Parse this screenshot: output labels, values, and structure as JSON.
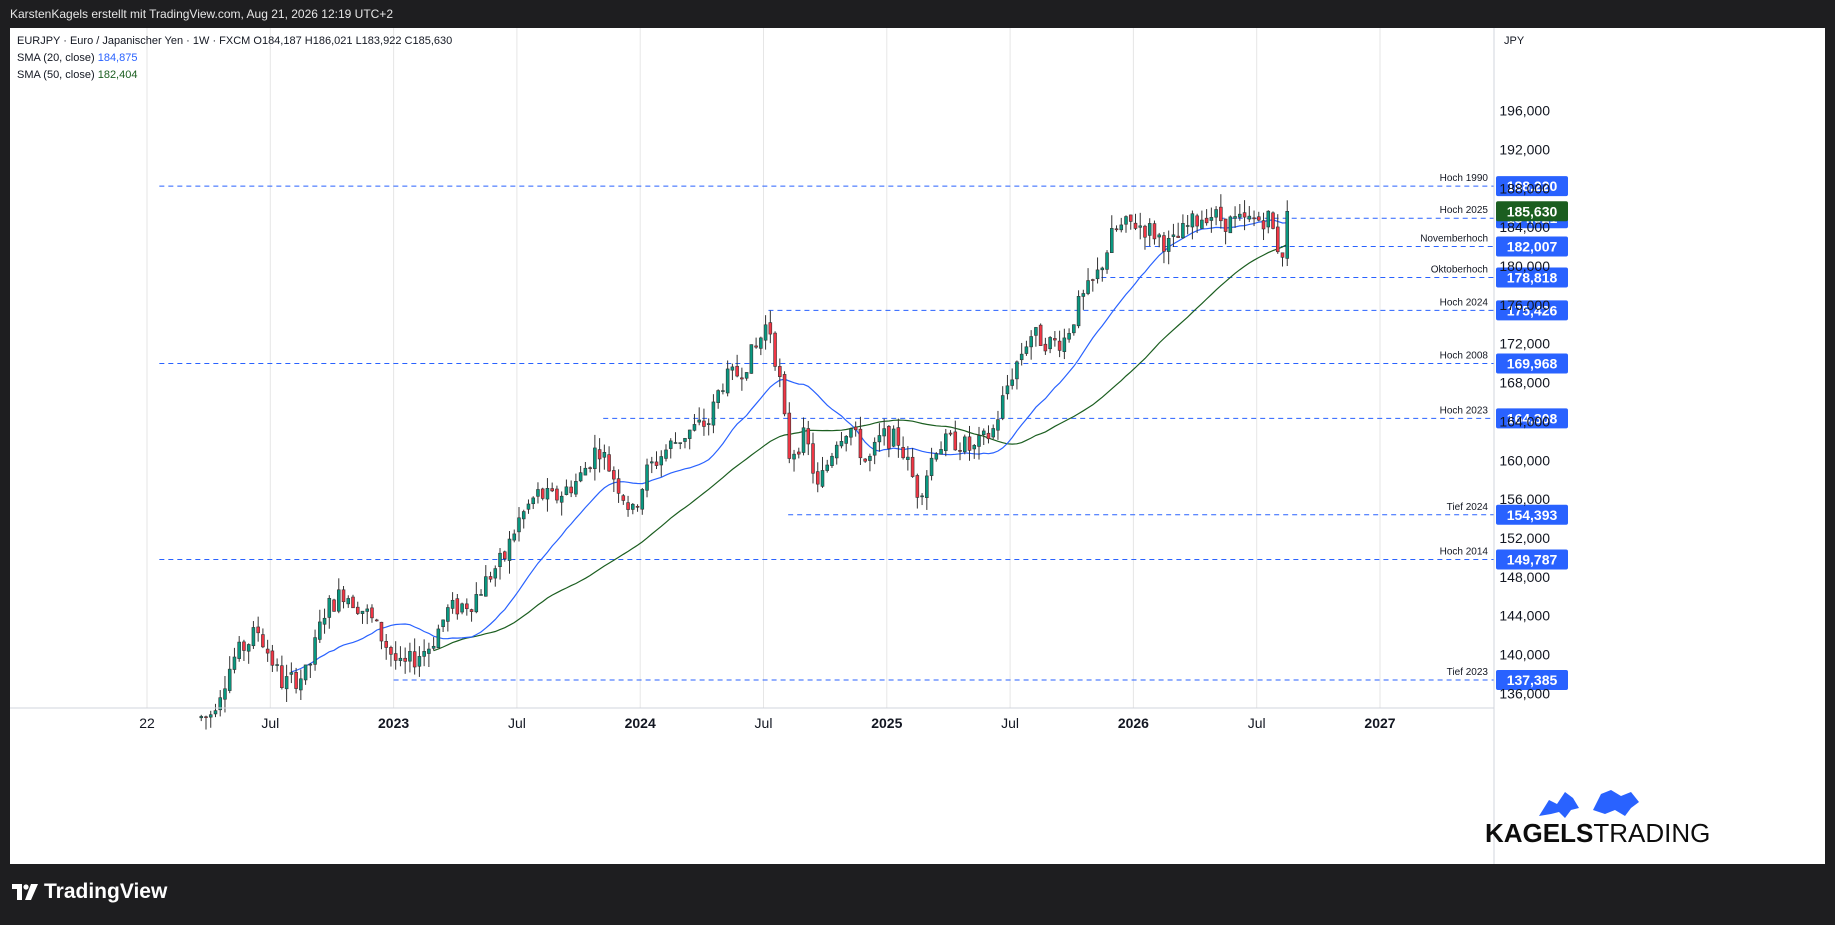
{
  "header": {
    "caption": "KarstenKagels erstellt mit TradingView.com, Aug 21, 2026 12:19 UTC+2"
  },
  "legend": {
    "symbol_line": "EURJPY · Euro / Japanischer Yen · 1W · FXCM",
    "open": "O184,187",
    "high": "H186,021",
    "low": "L183,922",
    "close": "C185,630",
    "sma20_label": "SMA (20, close)",
    "sma20_value": "184,875",
    "sma50_label": "SMA (50, close)",
    "sma50_value": "182,404"
  },
  "footer": {
    "platform": "TradingView"
  },
  "watermark": {
    "brand_bold": "KAGELS",
    "brand_light": "TRADING"
  },
  "colors": {
    "up": "#089981",
    "down": "#f23645",
    "sma20": "#2962ff",
    "sma50": "#1b5e20",
    "level": "#2962ff",
    "last": "#1b5e20"
  },
  "chart_data": {
    "type": "candlestick",
    "symbol": "EURJPY",
    "timeframe": "1W",
    "currency": "JPY",
    "y_range": [
      134.5,
      204.5
    ],
    "x_range_years": [
      2022.05,
      2027.8
    ],
    "x_ticks": [
      {
        "label": "22",
        "t": 2022.0
      },
      {
        "label": "Jul",
        "t": 2022.5
      },
      {
        "label": "2023",
        "t": 2023.0
      },
      {
        "label": "Jul",
        "t": 2023.5
      },
      {
        "label": "2024",
        "t": 2024.0
      },
      {
        "label": "Jul",
        "t": 2024.5
      },
      {
        "label": "2025",
        "t": 2025.0
      },
      {
        "label": "Jul",
        "t": 2025.5
      },
      {
        "label": "2026",
        "t": 2026.0
      },
      {
        "label": "Jul",
        "t": 2026.5
      },
      {
        "label": "2027",
        "t": 2027.0
      }
    ],
    "y_ticks": [
      "136,000",
      "140,000",
      "144,000",
      "148,000",
      "152,000",
      "156,000",
      "160,000",
      "164,000",
      "168,000",
      "172,000",
      "176,000",
      "180,000",
      "184,000",
      "188,000",
      "192,000",
      "196,000"
    ],
    "levels": [
      {
        "name": "Hoch 1990",
        "value": 188.22,
        "label": "188,220",
        "from": 2022.05
      },
      {
        "name": "Hoch 2025",
        "value": 184.921,
        "label": "184,921",
        "from": 2026.35
      },
      {
        "name": "Novemberhoch",
        "value": 182.007,
        "label": "182,007",
        "from": 2026.05
      },
      {
        "name": "Oktoberhoch",
        "value": 178.818,
        "label": "178,818",
        "from": 2025.87
      },
      {
        "name": "Hoch 2024",
        "value": 175.426,
        "label": "175,426",
        "from": 2024.52
      },
      {
        "name": "Hoch 2008",
        "value": 169.968,
        "label": "169,968",
        "from": 2022.05
      },
      {
        "name": "Hoch 2023",
        "value": 164.308,
        "label": "164,308",
        "from": 2023.85
      },
      {
        "name": "Tief 2024",
        "value": 154.393,
        "label": "154,393",
        "from": 2024.6
      },
      {
        "name": "Hoch 2014",
        "value": 149.787,
        "label": "149,787",
        "from": 2022.05
      },
      {
        "name": "Tief 2023",
        "value": 137.385,
        "label": "137,385",
        "from": 2023.0
      }
    ],
    "last_price": {
      "value": 185.63,
      "label": "185,630"
    },
    "anchors": [
      [
        2022.25,
        133.5
      ],
      [
        2022.35,
        139.5
      ],
      [
        2022.45,
        142.5
      ],
      [
        2022.55,
        137.0
      ],
      [
        2022.65,
        138.0
      ],
      [
        2022.72,
        144.5
      ],
      [
        2022.8,
        146.5
      ],
      [
        2022.9,
        144.0
      ],
      [
        2022.97,
        141.0
      ],
      [
        2023.03,
        138.5
      ],
      [
        2023.15,
        141.0
      ],
      [
        2023.22,
        144.5
      ],
      [
        2023.32,
        145.5
      ],
      [
        2023.4,
        148.5
      ],
      [
        2023.45,
        150.0
      ],
      [
        2023.5,
        153.5
      ],
      [
        2023.58,
        156.5
      ],
      [
        2023.65,
        156.0
      ],
      [
        2023.75,
        158.0
      ],
      [
        2023.83,
        161.5
      ],
      [
        2023.9,
        158.0
      ],
      [
        2023.97,
        154.5
      ],
      [
        2024.03,
        159.0
      ],
      [
        2024.12,
        161.5
      ],
      [
        2024.2,
        163.0
      ],
      [
        2024.28,
        164.0
      ],
      [
        2024.33,
        168.0
      ],
      [
        2024.4,
        169.0
      ],
      [
        2024.47,
        171.5
      ],
      [
        2024.52,
        174.5
      ],
      [
        2024.57,
        167.5
      ],
      [
        2024.6,
        160.5
      ],
      [
        2024.67,
        162.5
      ],
      [
        2024.72,
        157.0
      ],
      [
        2024.8,
        162.5
      ],
      [
        2024.85,
        163.5
      ],
      [
        2024.92,
        159.5
      ],
      [
        2024.98,
        162.5
      ],
      [
        2025.05,
        162.0
      ],
      [
        2025.13,
        156.5
      ],
      [
        2025.2,
        161.5
      ],
      [
        2025.28,
        162.0
      ],
      [
        2025.35,
        161.0
      ],
      [
        2025.43,
        163.0
      ],
      [
        2025.5,
        168.5
      ],
      [
        2025.58,
        173.0
      ],
      [
        2025.67,
        172.0
      ],
      [
        2025.72,
        172.5
      ],
      [
        2025.78,
        176.0
      ],
      [
        2025.85,
        178.8
      ],
      [
        2025.92,
        183.5
      ],
      [
        2026.0,
        184.5
      ],
      [
        2026.08,
        183.5
      ],
      [
        2026.15,
        182.0
      ],
      [
        2026.22,
        184.0
      ],
      [
        2026.3,
        185.5
      ],
      [
        2026.38,
        184.5
      ],
      [
        2026.45,
        184.5
      ],
      [
        2026.55,
        185.0
      ],
      [
        2026.6,
        180.8
      ],
      [
        2026.63,
        185.63
      ]
    ]
  }
}
